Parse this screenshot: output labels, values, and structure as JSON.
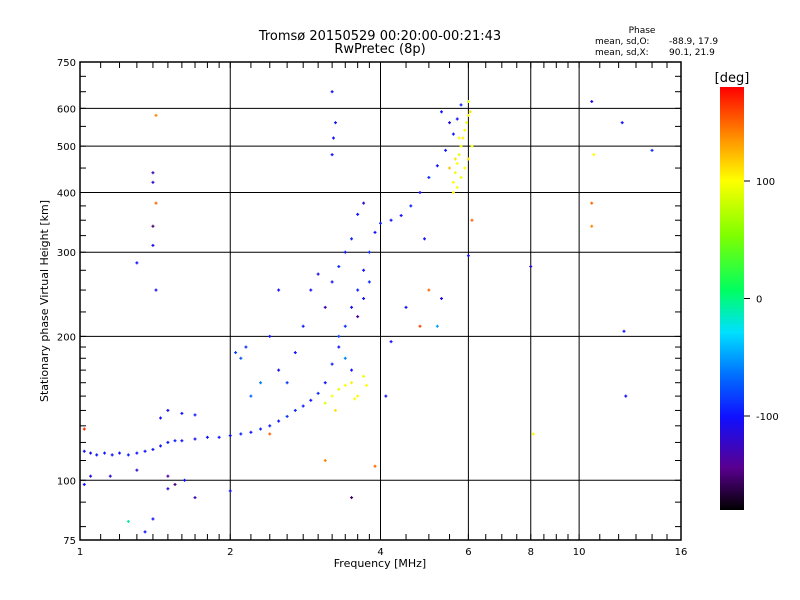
{
  "chart_data": {
    "type": "scatter",
    "title": "Tromsø 20150529 00:20:00-00:21:43",
    "subtitle": "RwPretec (8p)",
    "xlabel": "Frequency [MHz]",
    "ylabel": "Stationary phase Virtual Height [km]",
    "xscale": "log",
    "yscale": "log",
    "xlim": [
      1,
      16
    ],
    "ylim": [
      75,
      750
    ],
    "xticks": [
      1,
      2,
      4,
      6,
      8,
      10,
      16
    ],
    "xtick_labels": [
      "1",
      "2",
      "4",
      "6",
      "8",
      "10",
      "16"
    ],
    "yticks": [
      75,
      100,
      200,
      300,
      400,
      500,
      600,
      750
    ],
    "ytick_labels": [
      "75",
      "100",
      "200",
      "300",
      "400",
      "500",
      "600",
      "750"
    ],
    "grid": true,
    "phase_box": {
      "title": "Phase",
      "o_label": "mean, sd,O:",
      "o_value": "-88.9, 17.9",
      "x_label": "mean, sd,X:",
      "x_value": "90.1, 21.9"
    },
    "colorbar": {
      "label": "[deg]",
      "range": [
        -180,
        180
      ],
      "ticks": [
        100,
        0,
        -100
      ],
      "tick_labels": [
        "100",
        "0",
        "-100"
      ]
    },
    "points": [
      [
        1.02,
        115,
        -100
      ],
      [
        1.05,
        114,
        -105
      ],
      [
        1.08,
        113,
        -100
      ],
      [
        1.12,
        114,
        -98
      ],
      [
        1.16,
        113,
        -102
      ],
      [
        1.2,
        114,
        -100
      ],
      [
        1.25,
        113,
        -95
      ],
      [
        1.3,
        114,
        -100
      ],
      [
        1.35,
        115,
        -100
      ],
      [
        1.4,
        116,
        -98
      ],
      [
        1.45,
        118,
        -100
      ],
      [
        1.5,
        120,
        -100
      ],
      [
        1.55,
        121,
        -95
      ],
      [
        1.6,
        121,
        -100
      ],
      [
        1.7,
        122,
        -105
      ],
      [
        1.8,
        123,
        -100
      ],
      [
        1.9,
        123,
        -98
      ],
      [
        2.0,
        124,
        -100
      ],
      [
        2.1,
        125,
        -95
      ],
      [
        2.2,
        126,
        -100
      ],
      [
        2.3,
        128,
        -90
      ],
      [
        2.4,
        130,
        -95
      ],
      [
        2.5,
        133,
        -100
      ],
      [
        2.6,
        136,
        -85
      ],
      [
        2.7,
        140,
        -90
      ],
      [
        2.8,
        143,
        -95
      ],
      [
        2.9,
        147,
        -100
      ],
      [
        3.0,
        152,
        -90
      ],
      [
        3.1,
        160,
        -100
      ],
      [
        3.2,
        175,
        -95
      ],
      [
        3.3,
        190,
        -100
      ],
      [
        3.4,
        210,
        -90
      ],
      [
        3.5,
        230,
        -100
      ],
      [
        3.6,
        250,
        -95
      ],
      [
        3.7,
        275,
        -100
      ],
      [
        3.8,
        300,
        -90
      ],
      [
        3.9,
        330,
        -100
      ],
      [
        4.0,
        345,
        -95
      ],
      [
        4.2,
        350,
        -100
      ],
      [
        4.4,
        358,
        -100
      ],
      [
        4.6,
        375,
        -95
      ],
      [
        4.8,
        400,
        -100
      ],
      [
        5.0,
        430,
        -90
      ],
      [
        5.2,
        455,
        -100
      ],
      [
        5.4,
        490,
        -95
      ],
      [
        5.6,
        530,
        -100
      ],
      [
        5.7,
        570,
        -100
      ],
      [
        5.8,
        610,
        -95
      ],
      [
        5.5,
        560,
        -110
      ],
      [
        5.3,
        590,
        -100
      ],
      [
        1.02,
        98,
        -100
      ],
      [
        1.05,
        102,
        -110
      ],
      [
        1.3,
        105,
        -120
      ],
      [
        1.5,
        102,
        -140
      ],
      [
        1.55,
        98,
        -150
      ],
      [
        1.62,
        100,
        -100
      ],
      [
        1.45,
        135,
        -100
      ],
      [
        1.5,
        140,
        -110
      ],
      [
        1.6,
        138,
        -100
      ],
      [
        1.7,
        137,
        -95
      ],
      [
        2.05,
        185,
        -80
      ],
      [
        2.1,
        180,
        -75
      ],
      [
        2.15,
        190,
        -90
      ],
      [
        2.4,
        200,
        -100
      ],
      [
        2.5,
        170,
        -110
      ],
      [
        2.6,
        160,
        -85
      ],
      [
        2.7,
        185,
        -100
      ],
      [
        2.8,
        210,
        -95
      ],
      [
        2.9,
        250,
        -100
      ],
      [
        3.0,
        270,
        -110
      ],
      [
        3.1,
        230,
        -130
      ],
      [
        3.2,
        260,
        -100
      ],
      [
        3.3,
        280,
        -90
      ],
      [
        3.4,
        300,
        -100
      ],
      [
        3.5,
        320,
        -95
      ],
      [
        3.6,
        360,
        -100
      ],
      [
        3.7,
        380,
        -120
      ],
      [
        3.2,
        480,
        -100
      ],
      [
        3.22,
        520,
        -100
      ],
      [
        3.25,
        560,
        -95
      ],
      [
        3.2,
        650,
        -100
      ],
      [
        3.3,
        200,
        -80
      ],
      [
        3.4,
        180,
        -60
      ],
      [
        3.5,
        170,
        -100
      ],
      [
        3.6,
        220,
        -140
      ],
      [
        3.7,
        240,
        -100
      ],
      [
        3.8,
        260,
        -90
      ],
      [
        2.5,
        250,
        -100
      ],
      [
        2.3,
        160,
        -60
      ],
      [
        2.2,
        150,
        -70
      ],
      [
        3.2,
        150,
        100
      ],
      [
        3.3,
        155,
        95
      ],
      [
        3.4,
        158,
        100
      ],
      [
        3.5,
        160,
        105
      ],
      [
        3.6,
        150,
        100
      ],
      [
        3.7,
        165,
        95
      ],
      [
        3.75,
        158,
        100
      ],
      [
        3.1,
        145,
        90
      ],
      [
        3.25,
        140,
        110
      ],
      [
        3.55,
        148,
        100
      ],
      [
        5.6,
        420,
        100
      ],
      [
        5.65,
        440,
        95
      ],
      [
        5.7,
        460,
        100
      ],
      [
        5.75,
        480,
        90
      ],
      [
        5.8,
        500,
        100
      ],
      [
        5.85,
        520,
        105
      ],
      [
        5.9,
        540,
        100
      ],
      [
        5.95,
        560,
        95
      ],
      [
        6.0,
        580,
        100
      ],
      [
        6.05,
        590,
        110
      ],
      [
        5.6,
        400,
        105
      ],
      [
        5.7,
        410,
        100
      ],
      [
        5.8,
        430,
        95
      ],
      [
        5.9,
        450,
        100
      ],
      [
        6.0,
        470,
        110
      ],
      [
        6.1,
        500,
        100
      ],
      [
        5.5,
        450,
        120
      ],
      [
        5.65,
        470,
        110
      ],
      [
        5.75,
        520,
        100
      ],
      [
        6.0,
        620,
        90
      ],
      [
        1.4,
        440,
        -130
      ],
      [
        1.4,
        420,
        -120
      ],
      [
        1.4,
        340,
        -150
      ],
      [
        1.4,
        310,
        -110
      ],
      [
        1.42,
        380,
        150
      ],
      [
        1.3,
        285,
        -100
      ],
      [
        1.42,
        250,
        -100
      ],
      [
        1.42,
        580,
        140
      ],
      [
        1.15,
        102,
        -120
      ],
      [
        1.02,
        128,
        170
      ],
      [
        2.0,
        95,
        -100
      ],
      [
        2.4,
        125,
        150
      ],
      [
        3.1,
        110,
        140
      ],
      [
        3.5,
        92,
        -150
      ],
      [
        3.9,
        107,
        150
      ],
      [
        4.1,
        150,
        -100
      ],
      [
        4.8,
        210,
        160
      ],
      [
        5.0,
        250,
        150
      ],
      [
        6.1,
        350,
        150
      ],
      [
        6.0,
        295,
        -100
      ],
      [
        8.0,
        280,
        -120
      ],
      [
        8.1,
        125,
        100
      ],
      [
        10.6,
        620,
        -110
      ],
      [
        10.6,
        380,
        150
      ],
      [
        10.6,
        340,
        140
      ],
      [
        10.7,
        480,
        100
      ],
      [
        12.2,
        560,
        -100
      ],
      [
        14.0,
        490,
        -90
      ],
      [
        12.3,
        205,
        -100
      ],
      [
        12.4,
        150,
        -100
      ],
      [
        1.25,
        82,
        -10
      ],
      [
        1.4,
        83,
        -100
      ],
      [
        1.35,
        78,
        -100
      ],
      [
        1.5,
        96,
        -120
      ],
      [
        1.7,
        92,
        -130
      ],
      [
        4.9,
        320,
        -100
      ],
      [
        5.3,
        240,
        -110
      ],
      [
        4.5,
        230,
        -100
      ],
      [
        4.2,
        195,
        -100
      ],
      [
        5.2,
        210,
        -50
      ]
    ]
  }
}
